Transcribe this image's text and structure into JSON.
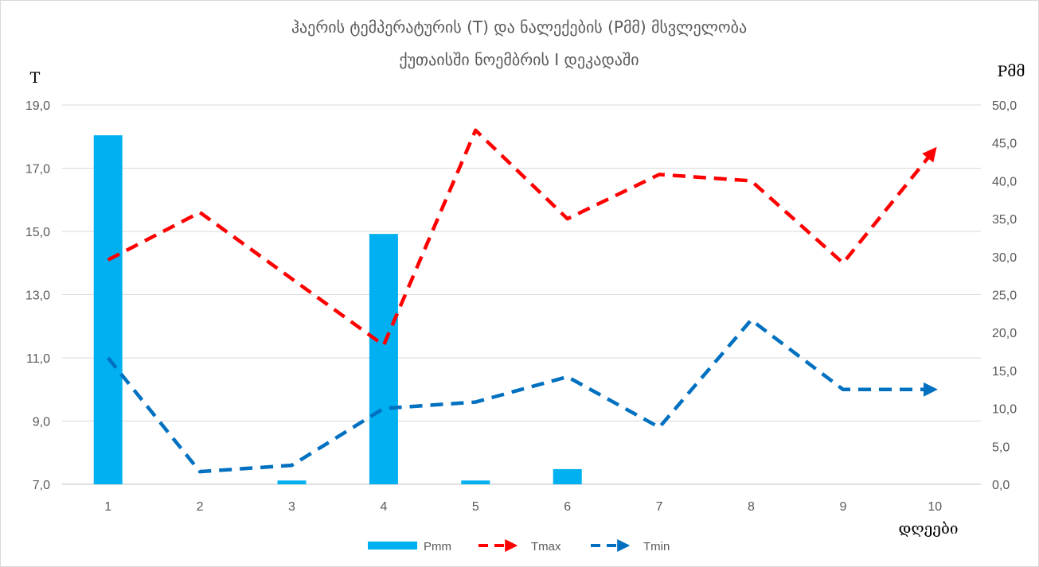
{
  "chart_data": {
    "type": "bar",
    "title_lines": [
      "ჰაერის ტემპერატურის (T) და ნალექების (Pმმ) მსვლელობა",
      "ქუთაისში ნოემბრის I დეკადაში"
    ],
    "y_left_label": "T",
    "y_right_label": "Pმმ",
    "x_axis_label": "დღეები",
    "categories": [
      "1",
      "2",
      "3",
      "4",
      "5",
      "6",
      "7",
      "8",
      "9",
      "10"
    ],
    "y_left": {
      "min": 7,
      "max": 19,
      "ticks": [
        "7,0",
        "9,0",
        "11,0",
        "13,0",
        "15,0",
        "17,0",
        "19,0"
      ]
    },
    "y_right": {
      "min": 0,
      "max": 50,
      "ticks": [
        "0,0",
        "5,0",
        "10,0",
        "15,0",
        "20,0",
        "25,0",
        "30,0",
        "35,0",
        "40,0",
        "45,0",
        "50,0"
      ]
    },
    "grid": true,
    "legend_position": "bottom",
    "series": [
      {
        "name": "Pmm",
        "kind": "bar",
        "axis": "right",
        "color": "#00b0f0",
        "values": [
          46.0,
          0,
          0.5,
          33.0,
          0.5,
          2.0,
          0,
          0,
          0,
          0
        ]
      },
      {
        "name": "Tmax",
        "kind": "line",
        "axis": "left",
        "color": "#ff0000",
        "values": [
          14.1,
          15.6,
          13.5,
          11.4,
          18.2,
          15.4,
          16.8,
          16.6,
          14.0,
          17.6
        ]
      },
      {
        "name": "Tmin",
        "kind": "line",
        "axis": "left",
        "color": "#0070c0",
        "values": [
          11.0,
          7.4,
          7.6,
          9.4,
          9.6,
          10.4,
          8.8,
          12.2,
          10.0,
          10.0
        ]
      }
    ]
  }
}
